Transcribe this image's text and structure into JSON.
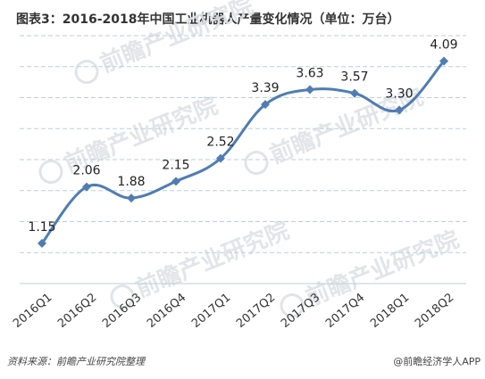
{
  "header": {
    "title": "图表3：2016-2018年中国工业机器人产量变化情况（单位：万台）"
  },
  "footer": {
    "source": "资料来源：前瞻产业研究院整理",
    "brand": "@前瞻经济学人APP"
  },
  "watermark": {
    "logo_text": "前瞻产业研究院",
    "brand_color": "#c9ced3"
  },
  "colors": {
    "series": "#4f7db3",
    "grid": "#b9cfdc"
  },
  "chart_data": {
    "type": "line",
    "title": "图表3：2016-2018年中国工业机器人产量变化情况（单位：万台）",
    "categories": [
      "2016Q1",
      "2016Q2",
      "2016Q3",
      "2016Q4",
      "2017Q1",
      "2017Q2",
      "2017Q3",
      "2017Q4",
      "2018Q1",
      "2018Q2"
    ],
    "values": [
      1.15,
      2.06,
      1.88,
      2.15,
      2.52,
      3.39,
      3.63,
      3.57,
      3.3,
      4.09
    ],
    "data_labels": [
      "1.15",
      "2.06",
      "1.88",
      "2.15",
      "2.52",
      "3.39",
      "3.63",
      "3.57",
      "3.30",
      "4.09"
    ],
    "ylim": [
      0.5,
      4.5
    ],
    "smooth": true,
    "marker": "diamond",
    "grid": "horizontal-dashed",
    "xlabel": "",
    "ylabel": ""
  }
}
